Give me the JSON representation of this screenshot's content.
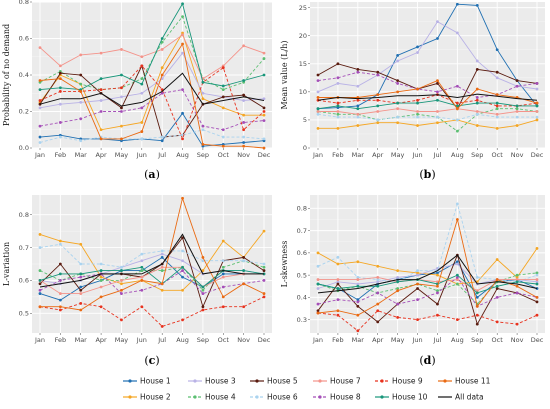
{
  "months": [
    "Jan",
    "Feb",
    "Mar",
    "Apr",
    "May",
    "Jun",
    "Jul",
    "Aug",
    "Sep",
    "Oct",
    "Nov",
    "Dec"
  ],
  "series_styles": [
    {
      "name": "House 1",
      "color": "#1f6fb2",
      "dashed": false
    },
    {
      "name": "House 2",
      "color": "#f5a623",
      "dashed": false
    },
    {
      "name": "House 3",
      "color": "#b9b2e6",
      "dashed": false
    },
    {
      "name": "House 4",
      "color": "#5cbf72",
      "dashed": true
    },
    {
      "name": "House 5",
      "color": "#5a1b0f",
      "dashed": false
    },
    {
      "name": "House 6",
      "color": "#aad3ef",
      "dashed": true
    },
    {
      "name": "House 7",
      "color": "#f4938a",
      "dashed": false
    },
    {
      "name": "House 8",
      "color": "#a54fb8",
      "dashed": true
    },
    {
      "name": "House 9",
      "color": "#e8321e",
      "dashed": true
    },
    {
      "name": "House 10",
      "color": "#18967a",
      "dashed": false
    },
    {
      "name": "House 11",
      "color": "#ea6a12",
      "dashed": false
    },
    {
      "name": "All data",
      "color": "#111111",
      "dashed": false
    }
  ],
  "chart_data": [
    {
      "type": "line",
      "caption": "(a)",
      "ylabel": "Probability of no demand",
      "categories": [
        "Jan",
        "Feb",
        "Mar",
        "Apr",
        "May",
        "Jun",
        "Jul",
        "Aug",
        "Sep",
        "Oct",
        "Nov",
        "Dec"
      ],
      "ylim": [
        0,
        0.8
      ],
      "yticks": [
        0.0,
        0.2,
        0.4,
        0.6,
        0.8
      ],
      "ytick_labels": [
        "0.0",
        "0.2",
        "0.4",
        "0.6",
        "0.8"
      ],
      "series": [
        {
          "name": "House 1",
          "values": [
            0.06,
            0.07,
            0.05,
            0.05,
            0.04,
            0.05,
            0.04,
            0.19,
            0.01,
            0.02,
            0.03,
            0.04
          ]
        },
        {
          "name": "House 2",
          "values": [
            0.25,
            0.4,
            0.35,
            0.1,
            0.12,
            0.14,
            0.44,
            0.63,
            0.27,
            0.22,
            0.18,
            0.18
          ]
        },
        {
          "name": "House 3",
          "values": [
            0.22,
            0.24,
            0.25,
            0.26,
            0.28,
            0.3,
            0.38,
            0.52,
            0.3,
            0.28,
            0.26,
            0.27
          ]
        },
        {
          "name": "House 4",
          "values": [
            0.36,
            0.42,
            0.35,
            0.32,
            0.33,
            0.38,
            0.58,
            0.72,
            0.38,
            0.32,
            0.36,
            0.49
          ]
        },
        {
          "name": "House 5",
          "values": [
            0.24,
            0.41,
            0.4,
            0.3,
            0.22,
            0.45,
            0.06,
            0.07,
            0.24,
            0.28,
            0.29,
            0.22
          ]
        },
        {
          "name": "House 6",
          "values": [
            0.03,
            0.06,
            0.04,
            0.06,
            0.05,
            0.05,
            0.06,
            0.07,
            0.1,
            0.06,
            0.06,
            0.05
          ]
        },
        {
          "name": "House 7",
          "values": [
            0.55,
            0.45,
            0.51,
            0.52,
            0.54,
            0.5,
            0.54,
            0.62,
            0.38,
            0.45,
            0.56,
            0.52
          ]
        },
        {
          "name": "House 8",
          "values": [
            0.12,
            0.14,
            0.16,
            0.2,
            0.2,
            0.22,
            0.3,
            0.32,
            0.12,
            0.1,
            0.14,
            0.15
          ]
        },
        {
          "name": "House 9",
          "values": [
            0.26,
            0.31,
            0.31,
            0.32,
            0.33,
            0.45,
            0.32,
            0.05,
            0.36,
            0.44,
            0.1,
            0.2
          ]
        },
        {
          "name": "House 10",
          "values": [
            0.32,
            0.33,
            0.32,
            0.38,
            0.4,
            0.35,
            0.6,
            0.79,
            0.36,
            0.34,
            0.37,
            0.4
          ]
        },
        {
          "name": "House 11",
          "values": [
            0.37,
            0.38,
            0.31,
            0.05,
            0.05,
            0.09,
            0.4,
            0.57,
            0.02,
            0.01,
            0.01,
            0.0
          ]
        },
        {
          "name": "All data",
          "values": [
            0.24,
            0.27,
            0.27,
            0.3,
            0.23,
            0.25,
            0.31,
            0.41,
            0.24,
            0.26,
            0.28,
            0.26
          ]
        }
      ]
    },
    {
      "type": "line",
      "caption": "(b)",
      "ylabel": "Mean value (L/h)",
      "categories": [
        "Jan",
        "Feb",
        "Mar",
        "Apr",
        "May",
        "Jun",
        "Jul",
        "Aug",
        "Sep",
        "Oct",
        "Nov",
        "Dec"
      ],
      "ylim": [
        0,
        26
      ],
      "yticks": [
        0,
        5,
        10,
        15,
        20,
        25
      ],
      "ytick_labels": [
        "0",
        "5",
        "10",
        "15",
        "20",
        "25"
      ],
      "series": [
        {
          "name": "House 1",
          "values": [
            7.0,
            7.2,
            7.5,
            9.5,
            16.5,
            18.0,
            19.5,
            25.6,
            25.4,
            17.5,
            12.0,
            7.5
          ]
        },
        {
          "name": "House 2",
          "values": [
            3.5,
            3.5,
            4.0,
            4.5,
            4.5,
            4.0,
            4.5,
            5.0,
            4.0,
            3.5,
            4.0,
            5.0
          ]
        },
        {
          "name": "House 3",
          "values": [
            10.0,
            11.5,
            11.0,
            13.0,
            15.5,
            17.0,
            22.5,
            20.5,
            15.5,
            12.5,
            11.0,
            10.5
          ]
        },
        {
          "name": "House 4",
          "values": [
            6.5,
            6.0,
            6.0,
            5.0,
            5.5,
            6.0,
            5.5,
            3.0,
            6.0,
            7.0,
            7.0,
            6.5
          ]
        },
        {
          "name": "House 5",
          "values": [
            13.0,
            15.0,
            14.0,
            13.5,
            12.0,
            10.5,
            11.5,
            7.0,
            14.0,
            13.5,
            12.0,
            11.5
          ]
        },
        {
          "name": "House 6",
          "values": [
            6.0,
            5.5,
            5.5,
            5.0,
            5.5,
            5.5,
            5.5,
            5.0,
            6.0,
            5.5,
            5.5,
            5.5
          ]
        },
        {
          "name": "House 7",
          "values": [
            6.5,
            6.5,
            6.0,
            6.5,
            7.0,
            6.5,
            6.5,
            7.0,
            6.5,
            6.0,
            6.5,
            6.5
          ]
        },
        {
          "name": "House 8",
          "values": [
            12.0,
            12.5,
            13.5,
            13.0,
            11.5,
            10.5,
            10.0,
            11.0,
            9.0,
            9.5,
            11.0,
            11.5
          ]
        },
        {
          "name": "House 9",
          "values": [
            8.5,
            8.0,
            8.5,
            8.5,
            8.0,
            8.5,
            9.5,
            8.0,
            8.5,
            7.5,
            7.5,
            8.0
          ]
        },
        {
          "name": "House 10",
          "values": [
            7.0,
            7.5,
            7.0,
            7.5,
            8.0,
            8.0,
            8.5,
            7.5,
            8.0,
            8.0,
            7.5,
            7.5
          ]
        },
        {
          "name": "House 11",
          "values": [
            9.0,
            9.0,
            9.0,
            9.5,
            10.0,
            10.5,
            12.0,
            7.0,
            10.5,
            9.5,
            9.0,
            8.0
          ]
        },
        {
          "name": "All data",
          "values": [
            8.5,
            9.0,
            8.8,
            9.0,
            9.3,
            9.3,
            9.5,
            9.0,
            9.6,
            9.2,
            8.8,
            8.5
          ]
        }
      ]
    },
    {
      "type": "line",
      "caption": "(c)",
      "ylabel": "L-variation",
      "categories": [
        "Jan",
        "Feb",
        "Mar",
        "Apr",
        "May",
        "Jun",
        "Jul",
        "Aug",
        "Sep",
        "Oct",
        "Nov",
        "Dec"
      ],
      "ylim": [
        0.44,
        0.86
      ],
      "yticks": [
        0.5,
        0.6,
        0.7,
        0.8
      ],
      "ytick_labels": [
        "0.5",
        "0.6",
        "0.7",
        "0.8"
      ],
      "series": [
        {
          "name": "House 1",
          "values": [
            0.56,
            0.54,
            0.58,
            0.6,
            0.63,
            0.63,
            0.67,
            0.61,
            0.58,
            0.62,
            0.62,
            0.62
          ]
        },
        {
          "name": "House 2",
          "values": [
            0.74,
            0.72,
            0.71,
            0.61,
            0.59,
            0.6,
            0.57,
            0.57,
            0.63,
            0.72,
            0.67,
            0.75
          ]
        },
        {
          "name": "House 3",
          "values": [
            0.6,
            0.59,
            0.6,
            0.62,
            0.64,
            0.66,
            0.68,
            0.66,
            0.62,
            0.63,
            0.63,
            0.62
          ]
        },
        {
          "name": "House 4",
          "values": [
            0.63,
            0.6,
            0.62,
            0.6,
            0.6,
            0.63,
            0.63,
            0.64,
            0.57,
            0.64,
            0.66,
            0.64
          ]
        },
        {
          "name": "House 5",
          "values": [
            0.59,
            0.65,
            0.57,
            0.62,
            0.62,
            0.61,
            0.65,
            0.73,
            0.52,
            0.66,
            0.67,
            0.63
          ]
        },
        {
          "name": "House 6",
          "values": [
            0.7,
            0.71,
            0.65,
            0.65,
            0.64,
            0.68,
            0.69,
            0.69,
            0.66,
            0.66,
            0.66,
            0.65
          ]
        },
        {
          "name": "House 7",
          "values": [
            0.6,
            0.56,
            0.56,
            0.58,
            0.6,
            0.61,
            0.64,
            0.64,
            0.58,
            0.61,
            0.62,
            0.62
          ]
        },
        {
          "name": "House 8",
          "values": [
            0.57,
            0.6,
            0.61,
            0.62,
            0.56,
            0.57,
            0.59,
            0.63,
            0.56,
            0.58,
            0.59,
            0.6
          ]
        },
        {
          "name": "House 9",
          "values": [
            0.52,
            0.51,
            0.53,
            0.52,
            0.48,
            0.52,
            0.46,
            0.48,
            0.51,
            0.52,
            0.52,
            0.55
          ]
        },
        {
          "name": "House 10",
          "values": [
            0.6,
            0.62,
            0.62,
            0.63,
            0.63,
            0.64,
            0.59,
            0.64,
            0.58,
            0.63,
            0.63,
            0.62
          ]
        },
        {
          "name": "House 11",
          "values": [
            0.52,
            0.52,
            0.51,
            0.55,
            0.57,
            0.6,
            0.59,
            0.85,
            0.67,
            0.55,
            0.59,
            0.56
          ]
        },
        {
          "name": "All data",
          "values": [
            0.58,
            0.59,
            0.6,
            0.62,
            0.62,
            0.62,
            0.65,
            0.74,
            0.62,
            0.63,
            0.62,
            0.62
          ]
        }
      ]
    },
    {
      "type": "line",
      "caption": "(d)",
      "ylabel": "L-skewness",
      "categories": [
        "Jan",
        "Feb",
        "Mar",
        "Apr",
        "May",
        "Jun",
        "Jul",
        "Aug",
        "Sep",
        "Oct",
        "Nov",
        "Dec"
      ],
      "ylim": [
        0.24,
        0.86
      ],
      "yticks": [
        0.3,
        0.4,
        0.5,
        0.6,
        0.7,
        0.8
      ],
      "ytick_labels": [
        "0.3",
        "0.4",
        "0.5",
        "0.6",
        "0.7",
        "0.8"
      ],
      "series": [
        {
          "name": "House 1",
          "values": [
            0.46,
            0.44,
            0.39,
            0.46,
            0.48,
            0.5,
            0.51,
            0.56,
            0.4,
            0.47,
            0.48,
            0.44
          ]
        },
        {
          "name": "House 2",
          "values": [
            0.6,
            0.55,
            0.56,
            0.54,
            0.52,
            0.51,
            0.5,
            0.46,
            0.47,
            0.57,
            0.49,
            0.62
          ]
        },
        {
          "name": "House 3",
          "values": [
            0.44,
            0.47,
            0.46,
            0.47,
            0.49,
            0.5,
            0.53,
            0.55,
            0.46,
            0.48,
            0.48,
            0.47
          ]
        },
        {
          "name": "House 4",
          "values": [
            0.46,
            0.43,
            0.45,
            0.42,
            0.44,
            0.46,
            0.43,
            0.46,
            0.37,
            0.47,
            0.5,
            0.51
          ]
        },
        {
          "name": "House 5",
          "values": [
            0.34,
            0.46,
            0.36,
            0.29,
            0.37,
            0.44,
            0.37,
            0.59,
            0.28,
            0.44,
            0.42,
            0.38
          ]
        },
        {
          "name": "House 6",
          "values": [
            0.54,
            0.58,
            0.49,
            0.48,
            0.47,
            0.52,
            0.52,
            0.82,
            0.49,
            0.48,
            0.47,
            0.5
          ]
        },
        {
          "name": "House 7",
          "values": [
            0.48,
            0.48,
            0.48,
            0.49,
            0.47,
            0.48,
            0.47,
            0.48,
            0.43,
            0.48,
            0.48,
            0.48
          ]
        },
        {
          "name": "House 8",
          "values": [
            0.37,
            0.39,
            0.38,
            0.42,
            0.37,
            0.39,
            0.42,
            0.49,
            0.36,
            0.4,
            0.42,
            0.4
          ]
        },
        {
          "name": "House 9",
          "values": [
            0.33,
            0.32,
            0.25,
            0.34,
            0.31,
            0.3,
            0.32,
            0.3,
            0.32,
            0.29,
            0.28,
            0.32
          ]
        },
        {
          "name": "House 10",
          "values": [
            0.46,
            0.44,
            0.45,
            0.45,
            0.47,
            0.48,
            0.46,
            0.5,
            0.42,
            0.45,
            0.47,
            0.46
          ]
        },
        {
          "name": "House 11",
          "values": [
            0.33,
            0.34,
            0.32,
            0.37,
            0.43,
            0.46,
            0.45,
            0.75,
            0.36,
            0.48,
            0.45,
            0.4
          ]
        },
        {
          "name": "All data",
          "values": [
            0.42,
            0.43,
            0.44,
            0.46,
            0.48,
            0.48,
            0.52,
            0.59,
            0.46,
            0.47,
            0.46,
            0.44
          ]
        }
      ]
    }
  ]
}
